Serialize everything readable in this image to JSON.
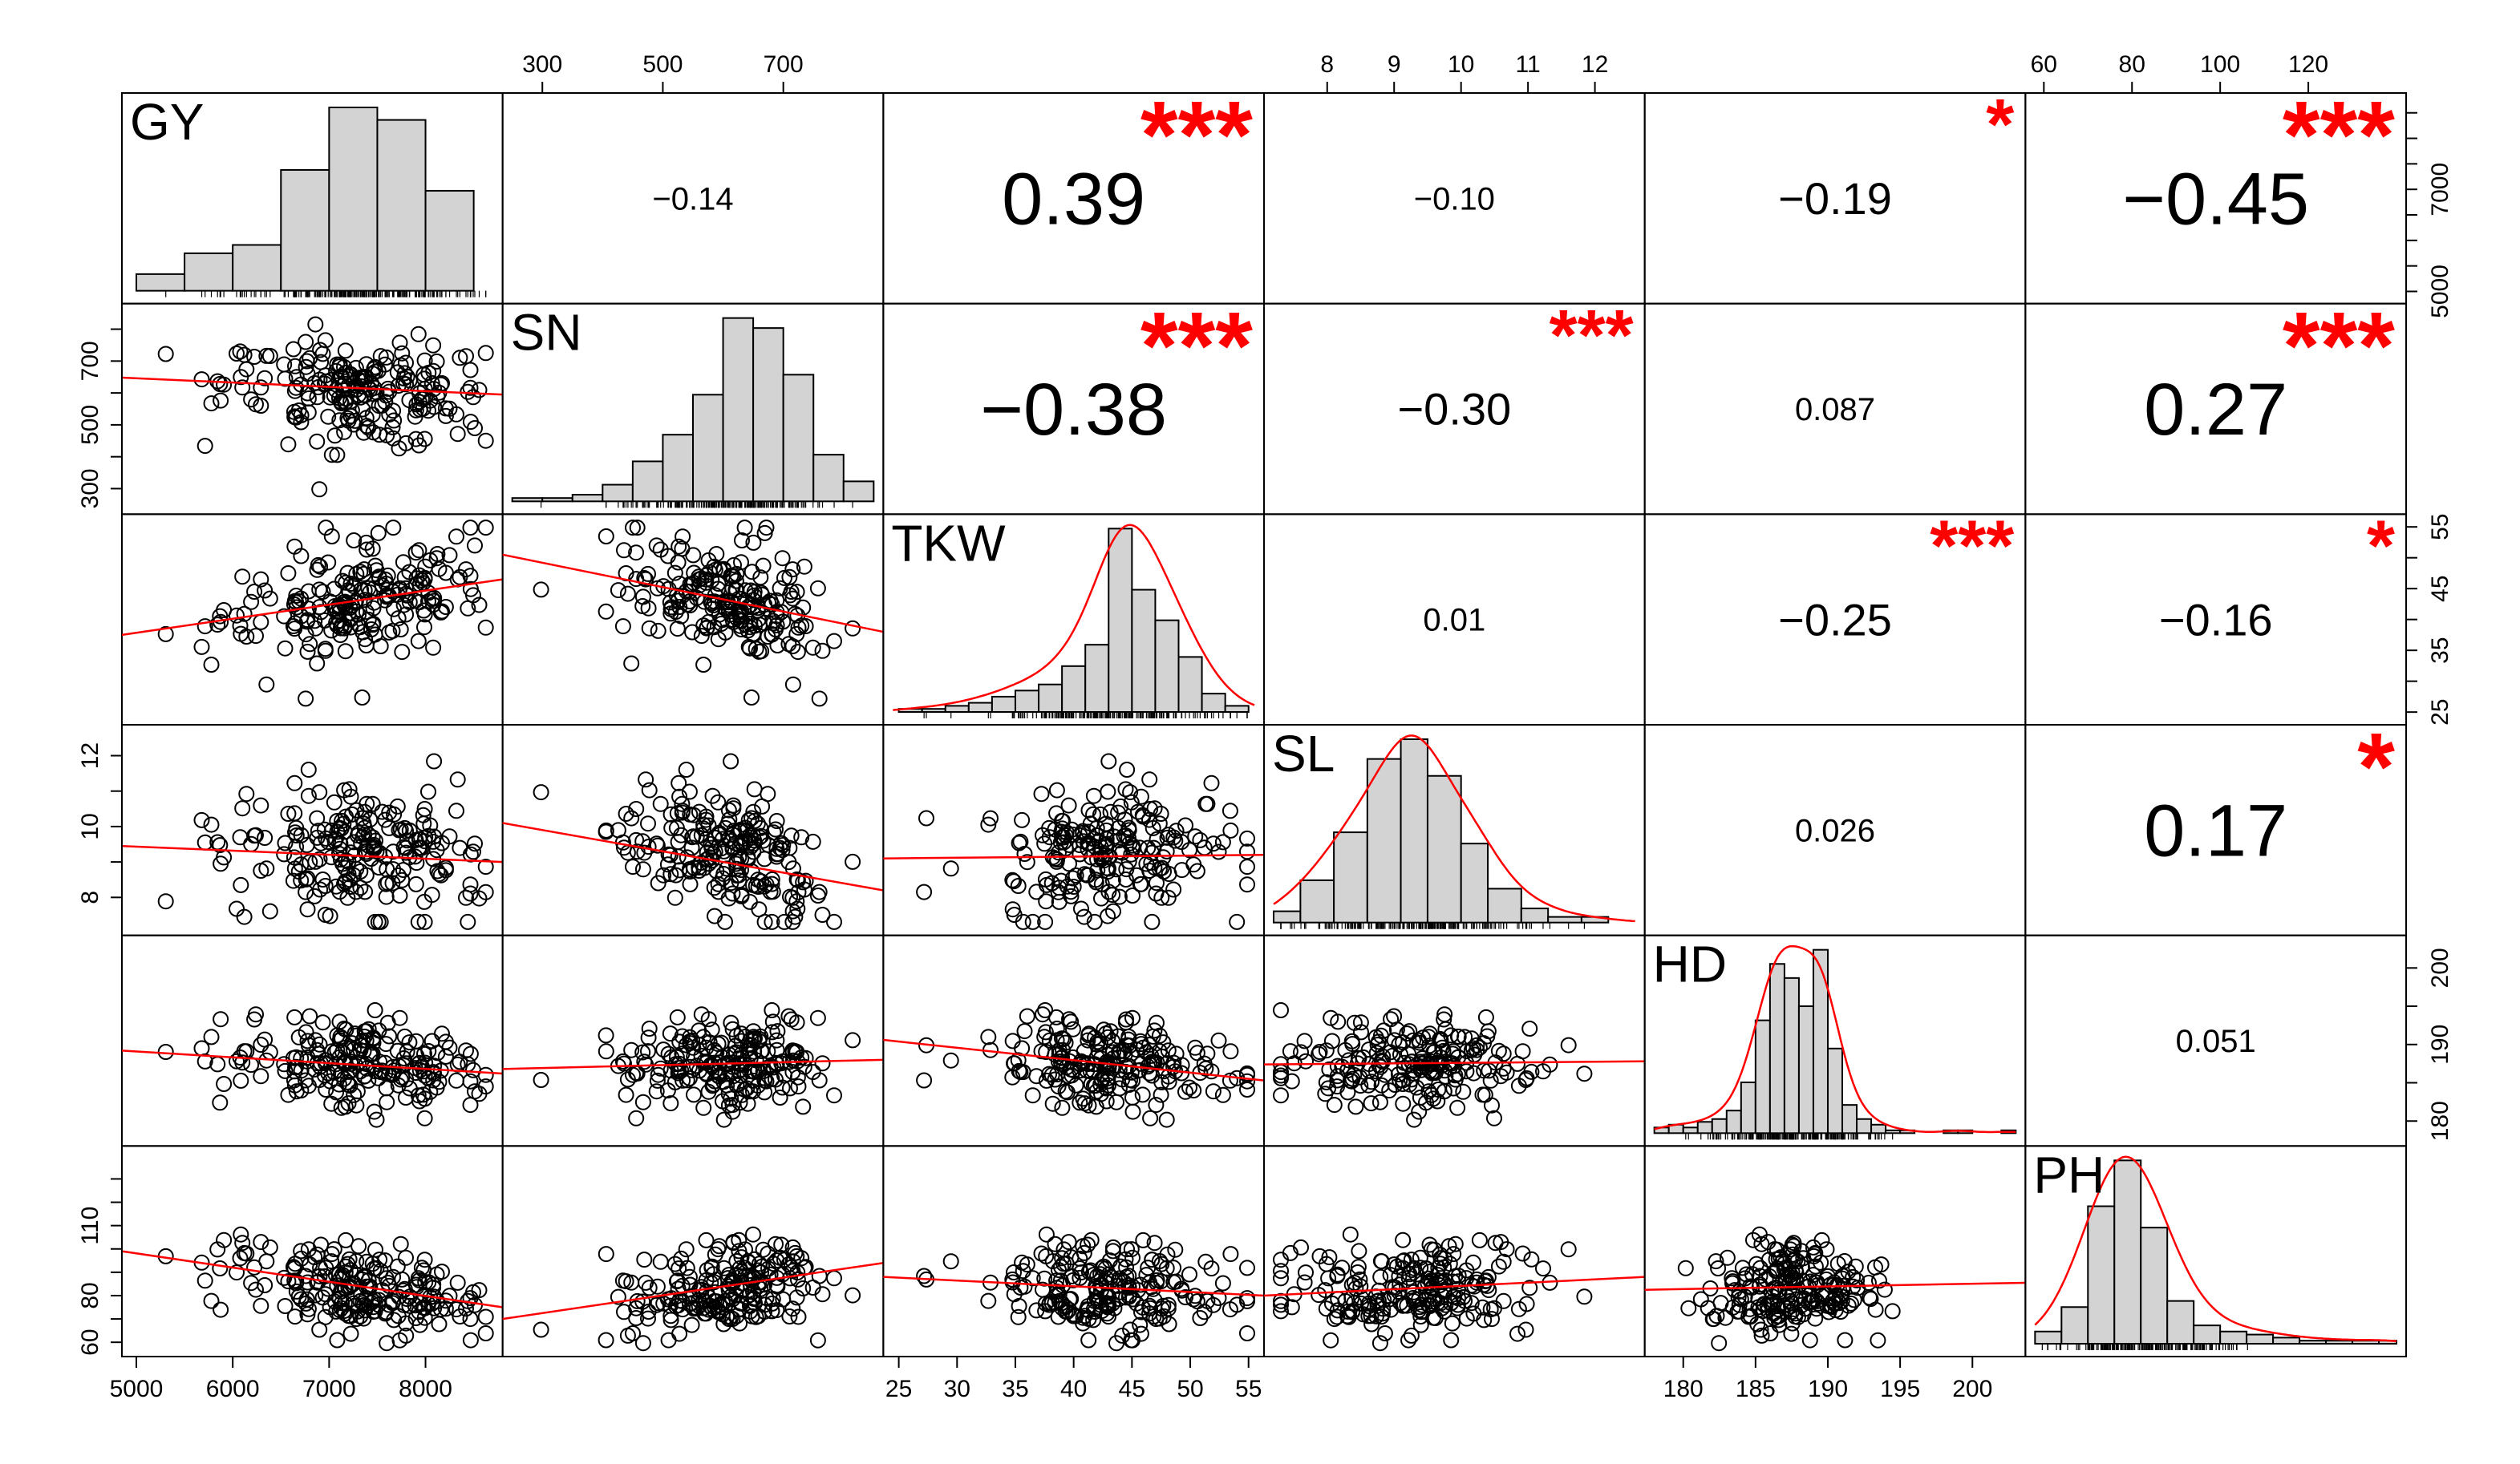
{
  "chart_data": {
    "type": "scatter",
    "variables": [
      "GY",
      "SN",
      "TKW",
      "SL",
      "HD",
      "PH"
    ],
    "ranges": {
      "GY": [
        4950,
        8700
      ],
      "SN": [
        250,
        850
      ],
      "TKW": [
        24.5,
        55.5
      ],
      "SL": [
        7.2,
        12.6
      ],
      "HD": [
        178,
        203
      ],
      "PH": [
        58,
        140
      ]
    },
    "ticks": {
      "GY": {
        "axis": "right",
        "labels": [
          "5000",
          "7000"
        ],
        "values": [
          5000,
          7000
        ],
        "minor": [
          5000,
          5500,
          6000,
          6500,
          7000,
          7500,
          8000,
          8500
        ]
      },
      "SN": {
        "axis": "left",
        "labels": [
          "300",
          "500",
          "700"
        ],
        "values": [
          300,
          500,
          700
        ],
        "minor": [
          300,
          400,
          500,
          600,
          700,
          800
        ]
      },
      "TKW": {
        "axis": "right",
        "labels": [
          "25",
          "35",
          "45",
          "55"
        ],
        "values": [
          25,
          35,
          45,
          55
        ],
        "minor": [
          25,
          30,
          35,
          40,
          45,
          50,
          55
        ]
      },
      "SL": {
        "axis": "left",
        "labels": [
          "8",
          "10",
          "12"
        ],
        "values": [
          8,
          10,
          12
        ],
        "minor": [
          8,
          9,
          10,
          11,
          12
        ]
      },
      "HD": {
        "axis": "right",
        "labels": [
          "180",
          "190",
          "200"
        ],
        "values": [
          180,
          190,
          200
        ],
        "minor": [
          180,
          185,
          190,
          195,
          200
        ]
      },
      "PH": {
        "axis": "left",
        "labels": [
          "60",
          "80",
          "110"
        ],
        "values": [
          60,
          80,
          110
        ],
        "minor": [
          60,
          70,
          80,
          90,
          100,
          110,
          120,
          130
        ]
      }
    },
    "top_ticks": {
      "SN": {
        "labels": [
          "300",
          "500",
          "700"
        ],
        "values": [
          300,
          500,
          700
        ]
      },
      "SL": {
        "labels": [
          "8",
          "9",
          "10",
          "11",
          "12"
        ],
        "values": [
          8,
          9,
          10,
          11,
          12
        ]
      },
      "PH": {
        "labels": [
          "60",
          "80",
          "100",
          "120"
        ],
        "values": [
          60,
          80,
          100,
          120
        ]
      }
    },
    "bottom_ticks": {
      "GY": {
        "labels": [
          "5000",
          "6000",
          "7000",
          "8000"
        ],
        "values": [
          5000,
          6000,
          7000,
          8000
        ]
      },
      "TKW": {
        "labels": [
          "25",
          "30",
          "35",
          "40",
          "45",
          "50",
          "55"
        ],
        "values": [
          25,
          30,
          35,
          40,
          45,
          50,
          55
        ]
      },
      "HD": {
        "labels": [
          "180",
          "185",
          "190",
          "195",
          "200"
        ],
        "values": [
          180,
          185,
          190,
          195,
          200
        ]
      }
    },
    "correlations": [
      {
        "row": 0,
        "col": 1,
        "text": "-0.14",
        "stars": "",
        "size": "small"
      },
      {
        "row": 0,
        "col": 2,
        "text": "0.39",
        "stars": "***",
        "size": "large"
      },
      {
        "row": 0,
        "col": 3,
        "text": "-0.10",
        "stars": "",
        "size": "small"
      },
      {
        "row": 0,
        "col": 4,
        "text": "-0.19",
        "stars": "*",
        "size": "medium"
      },
      {
        "row": 0,
        "col": 5,
        "text": "-0.45",
        "stars": "***",
        "size": "large"
      },
      {
        "row": 1,
        "col": 2,
        "text": "-0.38",
        "stars": "***",
        "size": "large"
      },
      {
        "row": 1,
        "col": 3,
        "text": "-0.30",
        "stars": "***",
        "size": "medium"
      },
      {
        "row": 1,
        "col": 4,
        "text": "0.087",
        "stars": "",
        "size": "small"
      },
      {
        "row": 1,
        "col": 5,
        "text": "0.27",
        "stars": "***",
        "size": "large"
      },
      {
        "row": 2,
        "col": 3,
        "text": "0.01",
        "stars": "",
        "size": "small"
      },
      {
        "row": 2,
        "col": 4,
        "text": "-0.25",
        "stars": "***",
        "size": "medium"
      },
      {
        "row": 2,
        "col": 5,
        "text": "-0.16",
        "stars": "*",
        "size": "medium"
      },
      {
        "row": 3,
        "col": 4,
        "text": "0.026",
        "stars": "",
        "size": "small"
      },
      {
        "row": 3,
        "col": 5,
        "text": "0.17",
        "stars": "*",
        "size": "large"
      },
      {
        "row": 4,
        "col": 5,
        "text": "0.051",
        "stars": "",
        "size": "small"
      }
    ],
    "histograms": {
      "GY": {
        "bins": [
          5000,
          5500,
          6000,
          6500,
          7000,
          7500,
          8000,
          8500
        ],
        "counts": [
          8,
          18,
          22,
          58,
          88,
          82,
          48,
          2
        ]
      },
      "SN": {
        "bins": [
          250,
          300,
          350,
          400,
          450,
          500,
          550,
          600,
          650,
          700,
          750,
          800,
          850
        ],
        "counts": [
          1,
          1,
          2,
          5,
          12,
          20,
          32,
          55,
          52,
          38,
          14,
          6,
          2
        ]
      },
      "TKW": {
        "bins": [
          25,
          27,
          29,
          31,
          33,
          35,
          37,
          39,
          41,
          43,
          45,
          47,
          49,
          51,
          53,
          55
        ],
        "counts": [
          1,
          1,
          2,
          3,
          5,
          7,
          9,
          15,
          22,
          60,
          40,
          30,
          18,
          6,
          2
        ]
      },
      "SL": {
        "bins": [
          7.2,
          7.6,
          8.1,
          8.6,
          9.1,
          9.5,
          10.0,
          10.4,
          10.9,
          11.3,
          11.8,
          12.2
        ],
        "counts": [
          4,
          15,
          32,
          58,
          65,
          52,
          28,
          12,
          5,
          2,
          2
        ]
      },
      "HD": {
        "bins": [
          178,
          179,
          180,
          181,
          182,
          183,
          184,
          185,
          186,
          187,
          188,
          189,
          190,
          191,
          192,
          193,
          194,
          195,
          196,
          197,
          198,
          199,
          200,
          201,
          202,
          203
        ],
        "counts": [
          2,
          3,
          2,
          4,
          5,
          8,
          18,
          40,
          60,
          55,
          45,
          65,
          30,
          10,
          5,
          3,
          1,
          1,
          0,
          0,
          1,
          1,
          0,
          0,
          1
        ]
      },
      "PH": {
        "bins": [
          58,
          64,
          70,
          76,
          82,
          88,
          94,
          100,
          106,
          112,
          118,
          124,
          130,
          136,
          140
        ],
        "counts": [
          4,
          12,
          45,
          60,
          38,
          14,
          6,
          4,
          3,
          2,
          1,
          1,
          1,
          1
        ]
      }
    },
    "fit_lines": [
      {
        "row": 1,
        "col": 0,
        "points": [
          [
            4950,
            648
          ],
          [
            8700,
            595
          ]
        ]
      },
      {
        "row": 2,
        "col": 0,
        "points": [
          [
            4950,
            37.5
          ],
          [
            8700,
            46.5
          ]
        ]
      },
      {
        "row": 2,
        "col": 1,
        "points": [
          [
            250,
            50.5
          ],
          [
            850,
            38
          ]
        ]
      },
      {
        "row": 3,
        "col": 0,
        "points": [
          [
            4950,
            9.45
          ],
          [
            8700,
            9.0
          ]
        ]
      },
      {
        "row": 3,
        "col": 1,
        "points": [
          [
            250,
            10.1
          ],
          [
            850,
            8.2
          ]
        ]
      },
      {
        "row": 3,
        "col": 2,
        "points": [
          [
            24.5,
            9.1
          ],
          [
            55.5,
            9.2
          ]
        ]
      },
      {
        "row": 4,
        "col": 0,
        "points": [
          [
            4950,
            189.2
          ],
          [
            8700,
            186.2
          ]
        ]
      },
      {
        "row": 4,
        "col": 1,
        "points": [
          [
            250,
            186.8
          ],
          [
            850,
            188
          ]
        ]
      },
      {
        "row": 4,
        "col": 2,
        "points": [
          [
            24.5,
            190.6
          ],
          [
            55.5,
            185.3
          ]
        ]
      },
      {
        "row": 4,
        "col": 3,
        "points": [
          [
            7.2,
            187.4
          ],
          [
            12.6,
            187.8
          ]
        ]
      },
      {
        "row": 5,
        "col": 0,
        "points": [
          [
            4950,
            99
          ],
          [
            8700,
            75
          ]
        ]
      },
      {
        "row": 5,
        "col": 1,
        "points": [
          [
            250,
            70
          ],
          [
            850,
            94
          ]
        ]
      },
      {
        "row": 5,
        "col": 2,
        "points": [
          [
            24.5,
            88
          ],
          [
            55.5,
            80
          ]
        ]
      },
      {
        "row": 5,
        "col": 3,
        "points": [
          [
            7.2,
            80
          ],
          [
            12.6,
            88
          ]
        ]
      },
      {
        "row": 5,
        "col": 4,
        "points": [
          [
            178,
            82.5
          ],
          [
            203,
            85.5
          ]
        ]
      }
    ],
    "point_count": 210
  }
}
